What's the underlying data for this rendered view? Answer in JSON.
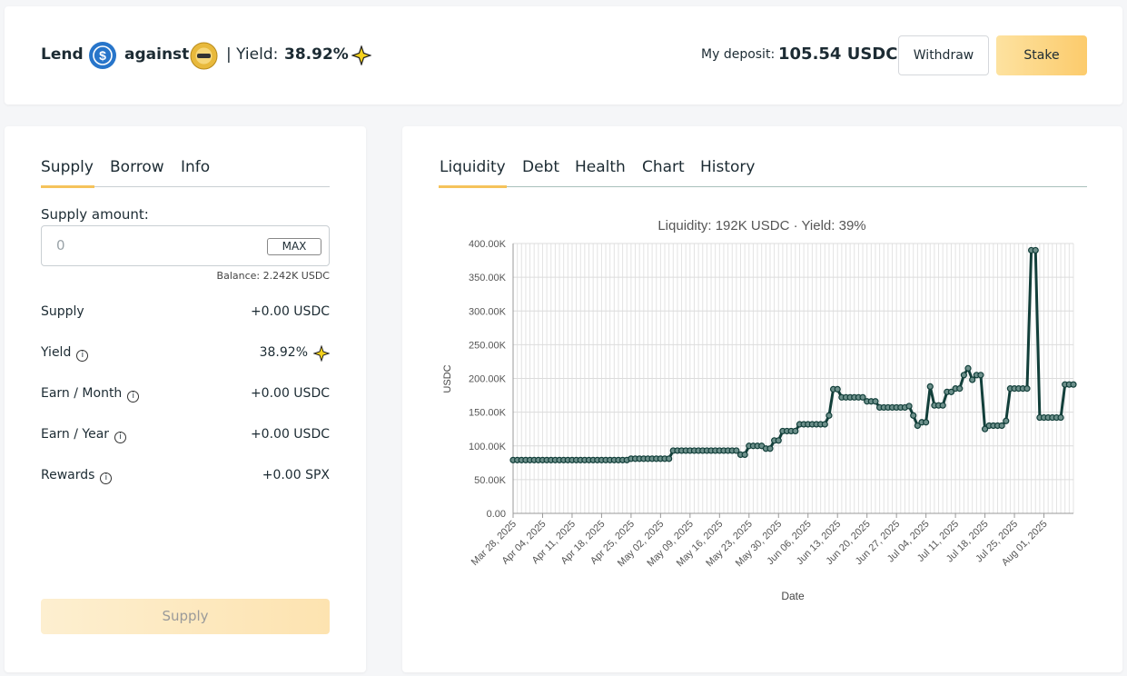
{
  "header": {
    "lend": "Lend",
    "against": "against",
    "yield_label": "| Yield:",
    "yield": "38.92%",
    "deposit_label": "My deposit:",
    "deposit": "105.54 USDC",
    "withdraw": "Withdraw",
    "stake": "Stake"
  },
  "left_panel": {
    "tabs": [
      "Supply",
      "Borrow",
      "Info"
    ],
    "supply_amount_label": "Supply amount:",
    "input_placeholder": "0",
    "max": "MAX",
    "balance": "Balance: 2.242K USDC",
    "rows": [
      {
        "label": "Supply",
        "value": "+0.00 USDC"
      },
      {
        "label": "Yield",
        "value": "38.92%"
      },
      {
        "label": "Earn / Month",
        "value": "+0.00 USDC"
      },
      {
        "label": "Earn / Year",
        "value": "+0.00 USDC"
      },
      {
        "label": "Rewards",
        "value": "+0.00 SPX"
      }
    ],
    "supply_button": "Supply"
  },
  "right_panel": {
    "tabs": [
      "Liquidity",
      "Debt",
      "Health",
      "Chart",
      "History"
    ]
  },
  "chart_data": {
    "type": "line",
    "title": "Liquidity: 192K USDC · Yield: 39%",
    "x_label": "Date",
    "y_label": "USDC",
    "grid": true,
    "series": [
      {
        "name": "Liquidity",
        "color": "#123f3a",
        "x": [
          "2025-03-28",
          "2025-03-29",
          "2025-03-30",
          "2025-03-31",
          "2025-04-01",
          "2025-04-02",
          "2025-04-03",
          "2025-04-04",
          "2025-04-05",
          "2025-04-06",
          "2025-04-07",
          "2025-04-08",
          "2025-04-09",
          "2025-04-10",
          "2025-04-11",
          "2025-04-12",
          "2025-04-13",
          "2025-04-14",
          "2025-04-15",
          "2025-04-16",
          "2025-04-17",
          "2025-04-18",
          "2025-04-19",
          "2025-04-20",
          "2025-04-21",
          "2025-04-22",
          "2025-04-23",
          "2025-04-24",
          "2025-04-25",
          "2025-04-26",
          "2025-04-27",
          "2025-04-28",
          "2025-04-29",
          "2025-04-30",
          "2025-05-01",
          "2025-05-02",
          "2025-05-03",
          "2025-05-04",
          "2025-05-05",
          "2025-05-06",
          "2025-05-07",
          "2025-05-08",
          "2025-05-09",
          "2025-05-10",
          "2025-05-11",
          "2025-05-12",
          "2025-05-13",
          "2025-05-14",
          "2025-05-15",
          "2025-05-16",
          "2025-05-17",
          "2025-05-18",
          "2025-05-19",
          "2025-05-20",
          "2025-05-21",
          "2025-05-22",
          "2025-05-23",
          "2025-05-24",
          "2025-05-25",
          "2025-05-26",
          "2025-05-27",
          "2025-05-28",
          "2025-05-29",
          "2025-05-30",
          "2025-05-31",
          "2025-06-01",
          "2025-06-02",
          "2025-06-03",
          "2025-06-04",
          "2025-06-05",
          "2025-06-06",
          "2025-06-07",
          "2025-06-08",
          "2025-06-09",
          "2025-06-10",
          "2025-06-11",
          "2025-06-12",
          "2025-06-13",
          "2025-06-14",
          "2025-06-15",
          "2025-06-16",
          "2025-06-17",
          "2025-06-18",
          "2025-06-19",
          "2025-06-20",
          "2025-06-21",
          "2025-06-22",
          "2025-06-23",
          "2025-06-24",
          "2025-06-25",
          "2025-06-26",
          "2025-06-27",
          "2025-06-28",
          "2025-06-29",
          "2025-06-30",
          "2025-07-01",
          "2025-07-02",
          "2025-07-03",
          "2025-07-04",
          "2025-07-05",
          "2025-07-06",
          "2025-07-07",
          "2025-07-08",
          "2025-07-09",
          "2025-07-10",
          "2025-07-11",
          "2025-07-12",
          "2025-07-13",
          "2025-07-14",
          "2025-07-15",
          "2025-07-16",
          "2025-07-17",
          "2025-07-18",
          "2025-07-19",
          "2025-07-20",
          "2025-07-21",
          "2025-07-22",
          "2025-07-23",
          "2025-07-24",
          "2025-07-25",
          "2025-07-26",
          "2025-07-27",
          "2025-07-28",
          "2025-07-29",
          "2025-07-30",
          "2025-07-31",
          "2025-08-01",
          "2025-08-02",
          "2025-08-03",
          "2025-08-04",
          "2025-08-05",
          "2025-08-06",
          "2025-08-07",
          "2025-08-08"
        ],
        "values": [
          79000,
          79000,
          79000,
          79000,
          79000,
          79000,
          79000,
          79000,
          79000,
          79000,
          79000,
          79000,
          79000,
          79000,
          79000,
          79000,
          79000,
          79000,
          79000,
          79000,
          79000,
          79000,
          79000,
          79000,
          79000,
          79000,
          79000,
          79000,
          81000,
          81000,
          81000,
          81000,
          81000,
          81000,
          81000,
          81000,
          81000,
          81000,
          93000,
          93000,
          93000,
          93000,
          93000,
          93000,
          93000,
          93000,
          93000,
          93000,
          93000,
          93000,
          93000,
          93000,
          93000,
          93000,
          87000,
          87000,
          100000,
          100000,
          100000,
          100000,
          96000,
          96000,
          108000,
          108000,
          122000,
          122000,
          122000,
          122000,
          132000,
          132000,
          132000,
          132000,
          132000,
          132000,
          132000,
          145000,
          184000,
          184000,
          172000,
          172000,
          172000,
          172000,
          172000,
          172000,
          166000,
          166000,
          166000,
          157000,
          157000,
          157000,
          157000,
          157000,
          157000,
          157000,
          159000,
          145000,
          130000,
          135000,
          135000,
          188000,
          160000,
          160000,
          160000,
          180000,
          180000,
          185000,
          185000,
          205000,
          215000,
          198000,
          205000,
          205000,
          125000,
          130000,
          130000,
          130000,
          130000,
          137000,
          185000,
          185000,
          185000,
          185000,
          185000,
          390000,
          390000,
          142000,
          142000,
          142000,
          142000,
          142000,
          142000,
          191000,
          191000,
          191000
        ]
      }
    ],
    "xlim": [
      "2025-03-28",
      "2025-08-08"
    ],
    "xticks": [
      {
        "value": "2025-03-28",
        "label": "Mar 28, 2025"
      },
      {
        "value": "2025-04-04",
        "label": "Apr 04, 2025"
      },
      {
        "value": "2025-04-11",
        "label": "Apr 11, 2025"
      },
      {
        "value": "2025-04-18",
        "label": "Apr 18, 2025"
      },
      {
        "value": "2025-04-25",
        "label": "Apr 25, 2025"
      },
      {
        "value": "2025-05-02",
        "label": "May 02, 2025"
      },
      {
        "value": "2025-05-09",
        "label": "May 09, 2025"
      },
      {
        "value": "2025-05-16",
        "label": "May 16, 2025"
      },
      {
        "value": "2025-05-23",
        "label": "May 23, 2025"
      },
      {
        "value": "2025-05-30",
        "label": "May 30, 2025"
      },
      {
        "value": "2025-06-06",
        "label": "Jun 06, 2025"
      },
      {
        "value": "2025-06-13",
        "label": "Jun 13, 2025"
      },
      {
        "value": "2025-06-20",
        "label": "Jun 20, 2025"
      },
      {
        "value": "2025-06-27",
        "label": "Jun 27, 2025"
      },
      {
        "value": "2025-07-04",
        "label": "Jul 04, 2025"
      },
      {
        "value": "2025-07-11",
        "label": "Jul 11, 2025"
      },
      {
        "value": "2025-07-18",
        "label": "Jul 18, 2025"
      },
      {
        "value": "2025-07-25",
        "label": "Jul 25, 2025"
      },
      {
        "value": "2025-08-01",
        "label": "Aug 01, 2025"
      }
    ],
    "ylim": [
      0,
      400000
    ],
    "yticks": [
      {
        "value": 0,
        "label": "0.00"
      },
      {
        "value": 50000,
        "label": "50.00K"
      },
      {
        "value": 100000,
        "label": "100.00K"
      },
      {
        "value": 150000,
        "label": "150.00K"
      },
      {
        "value": 200000,
        "label": "200.00K"
      },
      {
        "value": 250000,
        "label": "250.00K"
      },
      {
        "value": 300000,
        "label": "300.00K"
      },
      {
        "value": 350000,
        "label": "350.00K"
      },
      {
        "value": 400000,
        "label": "400.00K"
      }
    ]
  }
}
